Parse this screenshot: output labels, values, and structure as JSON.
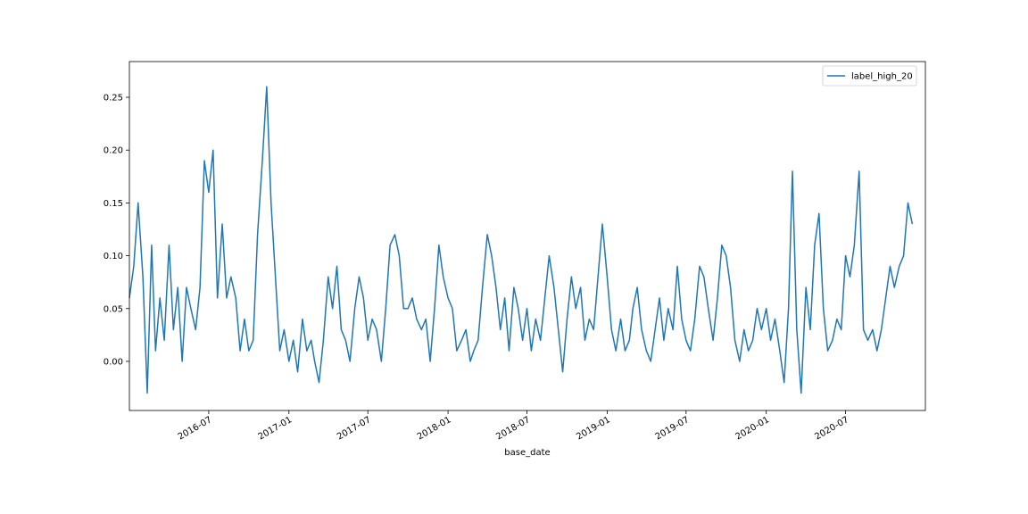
{
  "chart_data": {
    "type": "line",
    "xlabel": "base_date",
    "legend": "upper right",
    "xlim": [
      "2016-01-01",
      "2020-12-31"
    ],
    "xticks": [
      {
        "value": "2016-07-01",
        "label": "2016-07"
      },
      {
        "value": "2017-01-01",
        "label": "2017-01"
      },
      {
        "value": "2017-07-01",
        "label": "2017-07"
      },
      {
        "value": "2018-01-01",
        "label": "2018-01"
      },
      {
        "value": "2018-07-01",
        "label": "2018-07"
      },
      {
        "value": "2019-01-01",
        "label": "2019-01"
      },
      {
        "value": "2019-07-01",
        "label": "2019-07"
      },
      {
        "value": "2020-01-01",
        "label": "2020-01"
      },
      {
        "value": "2020-07-01",
        "label": "2020-07"
      }
    ],
    "ylim": [
      -0.0465,
      0.2838
    ],
    "yticks": [
      {
        "value": 0,
        "label": "0.00"
      },
      0.05,
      {
        "value": 0.1,
        "label": "0.10"
      },
      0.15,
      {
        "value": 0.2,
        "label": "0.20"
      },
      0.25
    ],
    "x": [
      "2016-01-01",
      "2016-01-11",
      "2016-01-21",
      "2016-02-01",
      "2016-02-11",
      "2016-02-21",
      "2016-03-01",
      "2016-03-11",
      "2016-03-21",
      "2016-04-01",
      "2016-04-11",
      "2016-04-21",
      "2016-05-01",
      "2016-05-11",
      "2016-05-21",
      "2016-06-01",
      "2016-06-11",
      "2016-06-21",
      "2016-07-01",
      "2016-07-11",
      "2016-07-21",
      "2016-08-01",
      "2016-08-11",
      "2016-08-21",
      "2016-09-01",
      "2016-09-11",
      "2016-09-21",
      "2016-10-01",
      "2016-10-11",
      "2016-10-21",
      "2016-11-01",
      "2016-11-11",
      "2016-11-21",
      "2016-12-01",
      "2016-12-11",
      "2016-12-21",
      "2017-01-01",
      "2017-01-11",
      "2017-01-21",
      "2017-02-01",
      "2017-02-11",
      "2017-02-21",
      "2017-03-01",
      "2017-03-11",
      "2017-03-21",
      "2017-04-01",
      "2017-04-11",
      "2017-04-21",
      "2017-05-01",
      "2017-05-11",
      "2017-05-21",
      "2017-06-01",
      "2017-06-11",
      "2017-06-21",
      "2017-07-01",
      "2017-07-11",
      "2017-07-21",
      "2017-08-01",
      "2017-08-11",
      "2017-08-21",
      "2017-09-01",
      "2017-09-11",
      "2017-09-21",
      "2017-10-01",
      "2017-10-11",
      "2017-10-21",
      "2017-11-01",
      "2017-11-11",
      "2017-11-21",
      "2017-12-01",
      "2017-12-11",
      "2017-12-21",
      "2018-01-01",
      "2018-01-11",
      "2018-01-21",
      "2018-02-01",
      "2018-02-11",
      "2018-02-21",
      "2018-03-01",
      "2018-03-11",
      "2018-03-21",
      "2018-04-01",
      "2018-04-11",
      "2018-04-21",
      "2018-05-01",
      "2018-05-11",
      "2018-05-21",
      "2018-06-01",
      "2018-06-11",
      "2018-06-21",
      "2018-07-01",
      "2018-07-11",
      "2018-07-21",
      "2018-08-01",
      "2018-08-11",
      "2018-08-21",
      "2018-09-01",
      "2018-09-11",
      "2018-09-21",
      "2018-10-01",
      "2018-10-11",
      "2018-10-21",
      "2018-11-01",
      "2018-11-11",
      "2018-11-21",
      "2018-12-01",
      "2018-12-11",
      "2018-12-21",
      "2019-01-01",
      "2019-01-11",
      "2019-01-21",
      "2019-02-01",
      "2019-02-11",
      "2019-02-21",
      "2019-03-01",
      "2019-03-11",
      "2019-03-21",
      "2019-04-01",
      "2019-04-11",
      "2019-04-21",
      "2019-05-01",
      "2019-05-11",
      "2019-05-21",
      "2019-06-01",
      "2019-06-11",
      "2019-06-21",
      "2019-07-01",
      "2019-07-11",
      "2019-07-21",
      "2019-08-01",
      "2019-08-11",
      "2019-08-21",
      "2019-09-01",
      "2019-09-11",
      "2019-09-21",
      "2019-10-01",
      "2019-10-11",
      "2019-10-21",
      "2019-11-01",
      "2019-11-11",
      "2019-11-21",
      "2019-12-01",
      "2019-12-11",
      "2019-12-21",
      "2020-01-01",
      "2020-01-11",
      "2020-01-21",
      "2020-02-01",
      "2020-02-11",
      "2020-02-21",
      "2020-03-01",
      "2020-03-11",
      "2020-03-21",
      "2020-04-01",
      "2020-04-11",
      "2020-04-21",
      "2020-05-01",
      "2020-05-11",
      "2020-05-21",
      "2020-06-01",
      "2020-06-11",
      "2020-06-21",
      "2020-07-01",
      "2020-07-11",
      "2020-07-21",
      "2020-08-01",
      "2020-08-11",
      "2020-08-21",
      "2020-09-01",
      "2020-09-11",
      "2020-09-21",
      "2020-10-01",
      "2020-10-11",
      "2020-10-21",
      "2020-11-01",
      "2020-11-11",
      "2020-11-21",
      "2020-12-01"
    ],
    "series": [
      {
        "name": "label_high_20",
        "color": "#1f77b4",
        "values": [
          0.06,
          0.09,
          0.15,
          0.08,
          -0.03,
          0.11,
          0.01,
          0.06,
          0.02,
          0.11,
          0.03,
          0.07,
          0.0,
          0.07,
          0.05,
          0.03,
          0.07,
          0.19,
          0.16,
          0.2,
          0.06,
          0.13,
          0.06,
          0.08,
          0.06,
          0.01,
          0.04,
          0.01,
          0.02,
          0.12,
          0.19,
          0.26,
          0.15,
          0.08,
          0.01,
          0.03,
          0.0,
          0.02,
          -0.01,
          0.04,
          0.01,
          0.02,
          0.0,
          -0.02,
          0.02,
          0.08,
          0.05,
          0.09,
          0.03,
          0.02,
          0.0,
          0.05,
          0.08,
          0.06,
          0.02,
          0.04,
          0.03,
          0.0,
          0.05,
          0.11,
          0.12,
          0.1,
          0.05,
          0.05,
          0.06,
          0.04,
          0.03,
          0.04,
          0.0,
          0.05,
          0.11,
          0.08,
          0.06,
          0.05,
          0.01,
          0.02,
          0.03,
          0.0,
          0.01,
          0.02,
          0.07,
          0.12,
          0.1,
          0.07,
          0.03,
          0.06,
          0.01,
          0.07,
          0.05,
          0.02,
          0.05,
          0.01,
          0.04,
          0.02,
          0.06,
          0.1,
          0.07,
          0.03,
          -0.01,
          0.04,
          0.08,
          0.05,
          0.07,
          0.02,
          0.04,
          0.03,
          0.08,
          0.13,
          0.08,
          0.03,
          0.01,
          0.04,
          0.01,
          0.02,
          0.05,
          0.07,
          0.03,
          0.01,
          0.0,
          0.03,
          0.06,
          0.02,
          0.05,
          0.03,
          0.09,
          0.04,
          0.02,
          0.01,
          0.04,
          0.09,
          0.08,
          0.05,
          0.02,
          0.06,
          0.11,
          0.1,
          0.07,
          0.02,
          0.0,
          0.03,
          0.01,
          0.02,
          0.05,
          0.03,
          0.05,
          0.02,
          0.04,
          0.01,
          -0.02,
          0.05,
          0.18,
          0.03,
          -0.03,
          0.07,
          0.03,
          0.11,
          0.14,
          0.05,
          0.01,
          0.02,
          0.04,
          0.03,
          0.1,
          0.08,
          0.11,
          0.18,
          0.03,
          0.02,
          0.03,
          0.01,
          0.03,
          0.06,
          0.09,
          0.07,
          0.09,
          0.1,
          0.15,
          0.13
        ]
      }
    ]
  }
}
